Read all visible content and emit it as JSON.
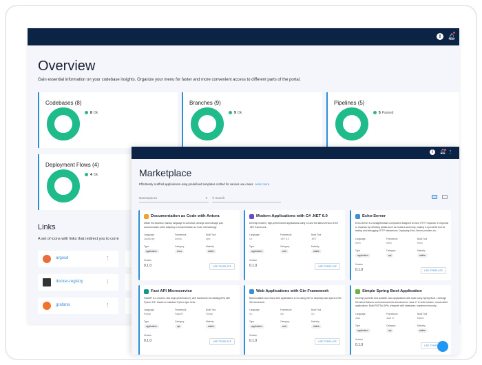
{
  "overview": {
    "title": "Overview",
    "subtitle": "Gain essential information on your codebase insights. Organize your menu for faster and more convenient access to different parts of the portal.",
    "stats": [
      {
        "title": "Codebases (8)",
        "count": "8",
        "label": "Ok"
      },
      {
        "title": "Branches (9)",
        "count": "9",
        "label": "Ok"
      },
      {
        "title": "Pipelines (5)",
        "count": "5",
        "label": "Passed"
      },
      {
        "title": "Deployment Flows (4)",
        "count": "4",
        "label": "Ok"
      }
    ],
    "links_title": "Links",
    "links_subtitle": "A set of icons with links that redirect you to corre",
    "links": [
      {
        "label": "argocd",
        "color": "#e96d3a"
      },
      {
        "label": "docker-registry",
        "color": "#333333"
      },
      {
        "label": "grafana",
        "color": "#f2732a"
      }
    ]
  },
  "marketplace": {
    "title": "Marketplace",
    "subtitle": "Effortlessly scaffold applications using predefined templates crafted for various use cases.",
    "learn_more": "Learn more.",
    "namespaces_placeholder": "Namespaces",
    "search_placeholder": "Search",
    "field_labels": {
      "language": "Language",
      "framework": "Framework",
      "build_tool": "Build Tool",
      "type": "Type",
      "category": "Category",
      "maturity": "Maturity",
      "version": "Version"
    },
    "use_template": "USE TEMPLATE",
    "cards": [
      {
        "title": "Documentation as Code with Antora",
        "icon_color": "#f0a030",
        "description": "Utilize the AsciiDoc markup language to construct, arrange and manage your documentation while adopting a Documentation as Code methodology.",
        "language": "JavaScript",
        "framework": "Antora",
        "build_tool": "npm",
        "type": "application",
        "category": "docs",
        "maturity": "stable",
        "version": "0.1.0"
      },
      {
        "title": "Modern Applications with C# .NET 6.0",
        "icon_color": "#6a4bc4",
        "description": "Develop modern, high-performance applications using C# and the latest version of the .NET framework.",
        "language": "C#",
        "framework": ".NET 6.0",
        "build_tool": ".NET",
        "type": "application",
        "category": "web",
        "maturity": "stable",
        "version": "0.1.0"
      },
      {
        "title": "Echo-Server",
        "icon_color": "#3b8fd6",
        "description": "Echo-Server is a straightforward component designed to echo HTTP requests. It responds to requests by reflecting details such as headers and body, making it a powerful tool for testing and debugging HTTP interactions. Deploying Echo-Server provides an...",
        "language": "Helm",
        "framework": "Helm",
        "build_tool": "Helm",
        "type": "application",
        "category": "api",
        "maturity": "stable",
        "version": "0.1.0"
      },
      {
        "title": "Fast API Microservice",
        "icon_color": "#119988",
        "description": "FastAPI is a modern, fast (high-performance), web framework for building APIs with Python 3.8+ based on standard Python type hints.",
        "language": "Python",
        "framework": "FastAPI",
        "build_tool": "Python",
        "type": "application",
        "category": "api",
        "maturity": "stable",
        "version": "0.1.0"
      },
      {
        "title": "Web Applications with Gin Framework",
        "icon_color": "#3b8fd6",
        "description": "Build scalable and robust web applications in Go using Gin for simplicity and speed of the Gin framework.",
        "language": "Go",
        "framework": "Gin",
        "build_tool": "Go",
        "type": "application",
        "category": "web",
        "maturity": "stable",
        "version": "0.1.0"
      },
      {
        "title": "Simple Spring Boot Application",
        "icon_color": "#6db33f",
        "description": "Develop powerful and scalable Java applications with ease using Spring Boot. Leverage the latest features and enhancements introduced in Java 17 to build modern, cloud-native applications. Build RESTful APIs, integrate with databases, implement security...",
        "language": "Java",
        "framework": "Java 17",
        "build_tool": "Maven",
        "type": "application",
        "category": "api",
        "maturity": "stable",
        "version": "0.1.0"
      }
    ]
  },
  "colors": {
    "header": "#0b2344",
    "accent": "#2b8fd6",
    "donut": "#1fbb8a"
  }
}
